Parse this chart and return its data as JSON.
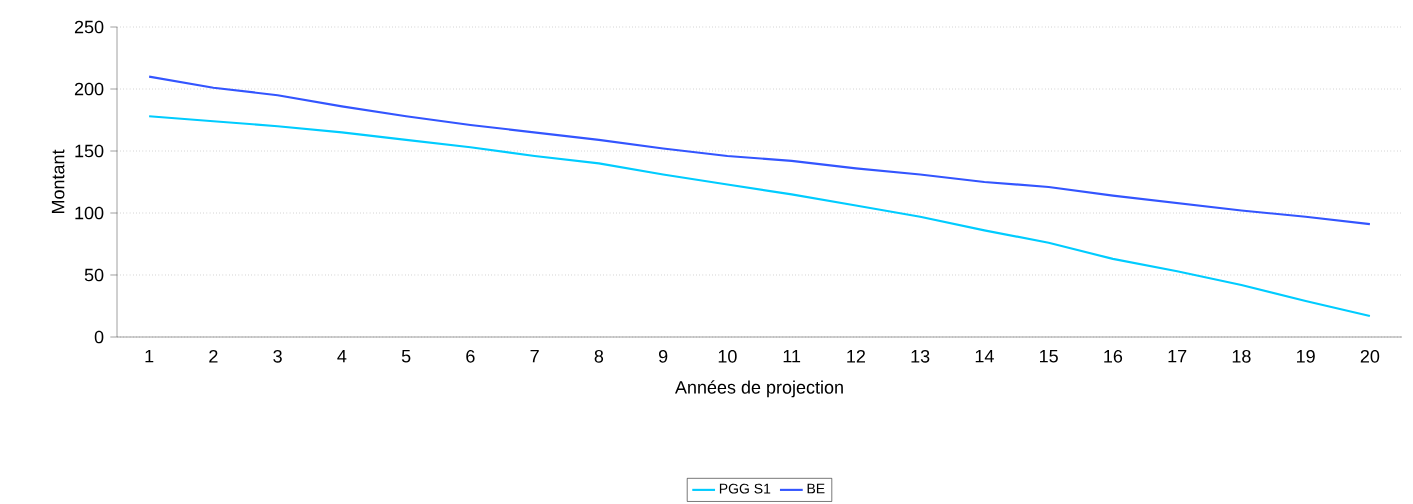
{
  "chart_data": {
    "type": "line",
    "xlabel": "Années de projection",
    "ylabel": "Montant",
    "categories": [
      "1",
      "2",
      "3",
      "4",
      "5",
      "6",
      "7",
      "8",
      "9",
      "10",
      "11",
      "12",
      "13",
      "14",
      "15",
      "16",
      "17",
      "18",
      "19",
      "20"
    ],
    "series": [
      {
        "name": "PGG S1",
        "color": "#00ccff",
        "values": [
          178,
          174,
          170,
          165,
          159,
          153,
          146,
          140,
          131,
          123,
          115,
          106,
          97,
          86,
          76,
          63,
          53,
          42,
          29,
          17
        ]
      },
      {
        "name": "BE",
        "color": "#3355ff",
        "values": [
          210,
          201,
          195,
          186,
          178,
          171,
          165,
          159,
          152,
          146,
          142,
          136,
          131,
          125,
          121,
          114,
          108,
          102,
          97,
          91
        ]
      }
    ],
    "ylim": [
      0,
      250
    ],
    "yticks": [
      0,
      50,
      100,
      150,
      200,
      250
    ],
    "grid": "y",
    "legend": "bottom",
    "marker": "none",
    "line_style": "solid"
  }
}
